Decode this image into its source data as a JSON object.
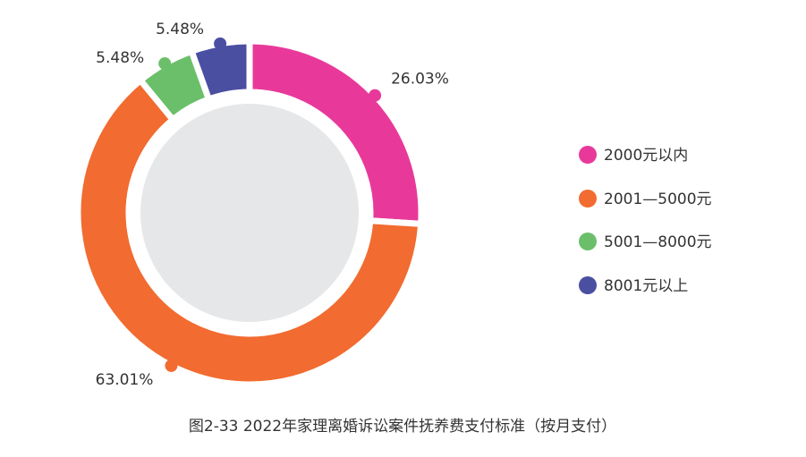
{
  "chart_data": {
    "type": "pie",
    "donut": true,
    "title": "图2-33  2022年家理离婚诉讼案件抚养费支付标准（按月支付）",
    "categories": [
      "2000元以内",
      "2001—5000元",
      "5001—8000元",
      "8001元以上"
    ],
    "values": [
      26.03,
      63.01,
      5.48,
      5.48
    ],
    "data_labels": [
      "26.03%",
      "63.01%",
      "5.48%",
      "5.48%"
    ],
    "colors": [
      "#E8399A",
      "#F26B30",
      "#6BBF6A",
      "#4B4FA2"
    ],
    "legend_position": "right"
  },
  "style": {
    "inner_disc_color": "#E6E7E8",
    "text_color": "#333333"
  }
}
